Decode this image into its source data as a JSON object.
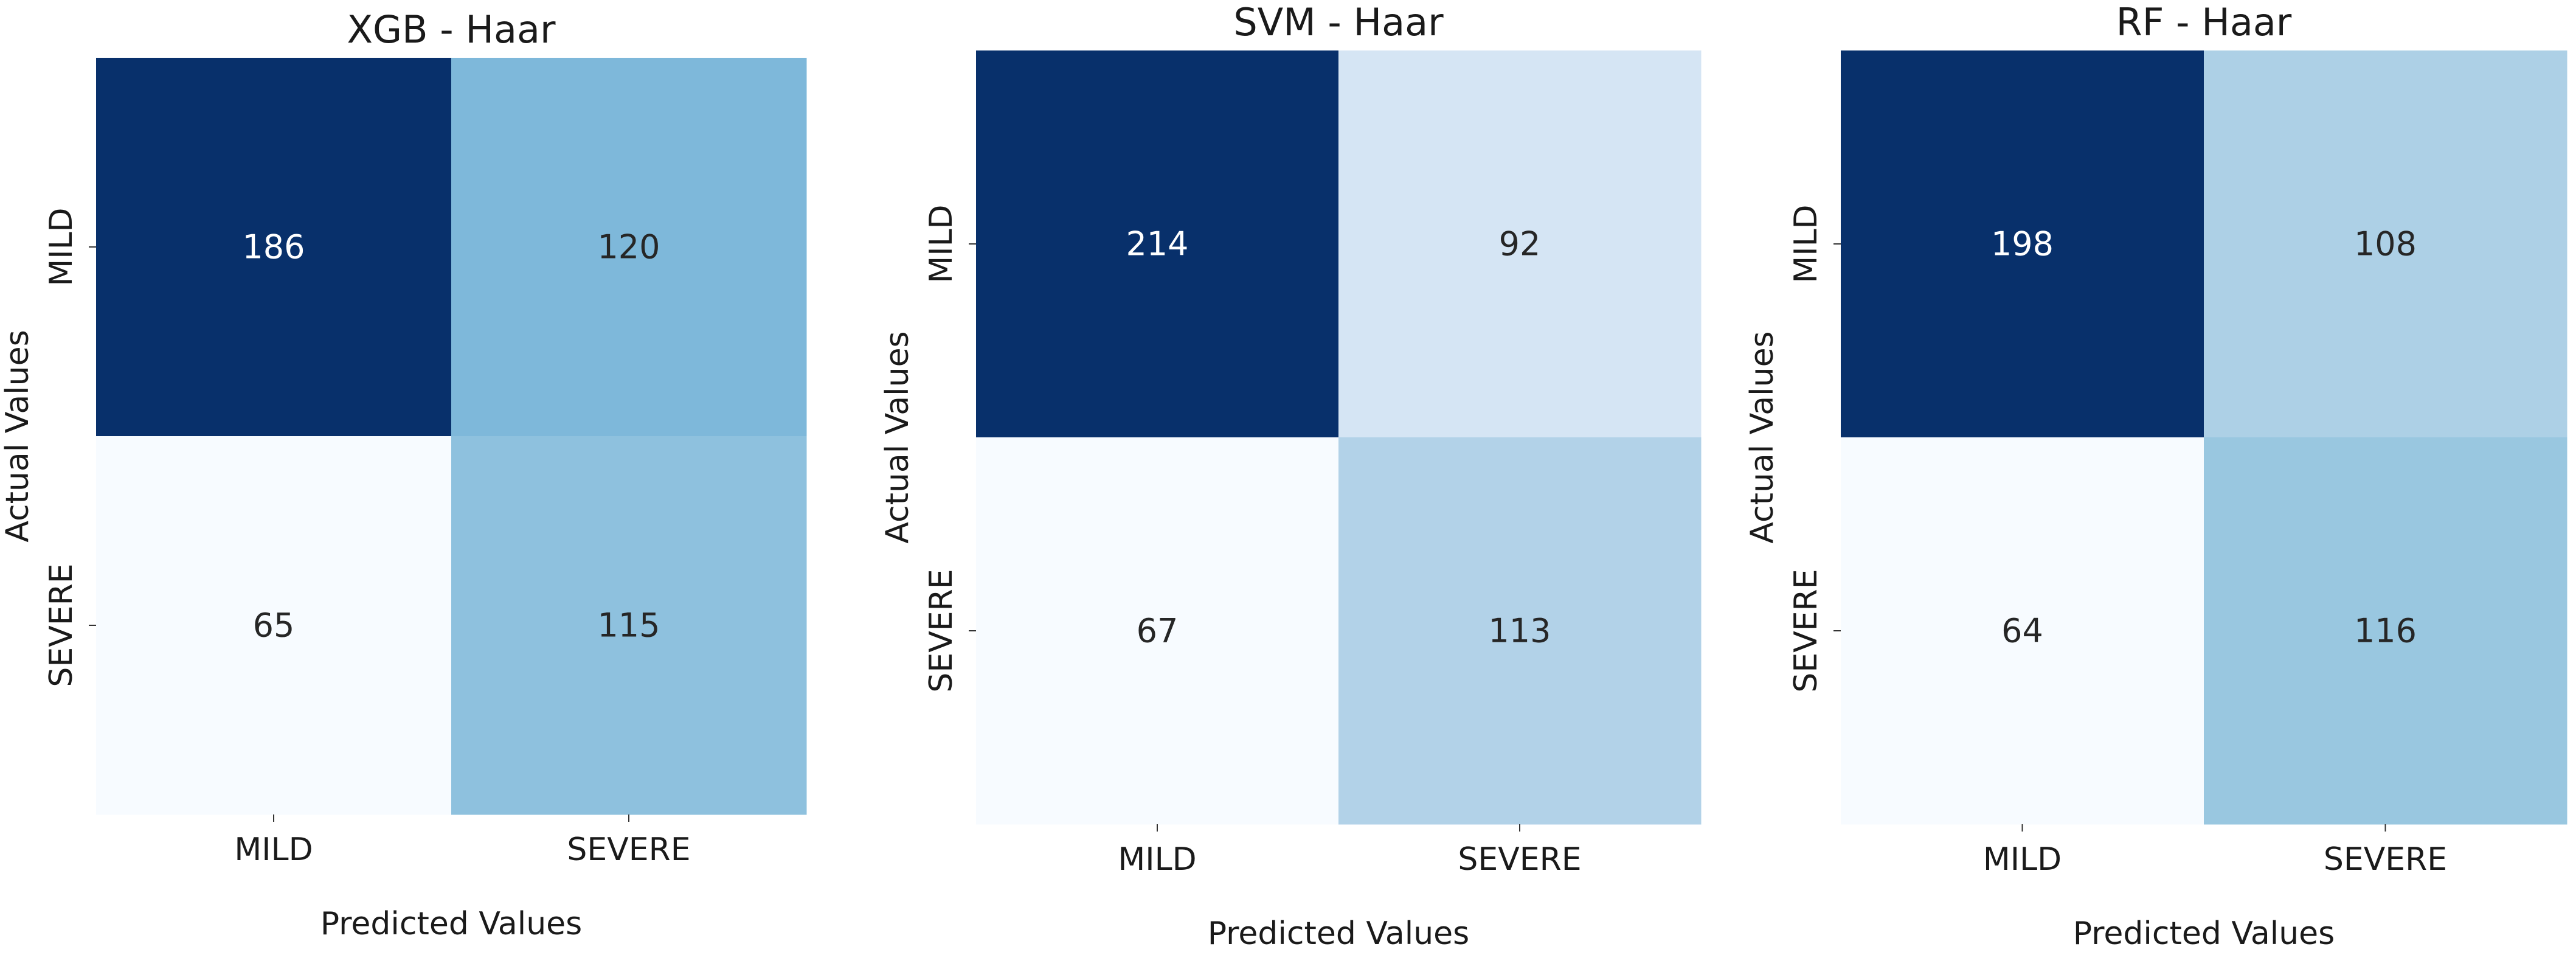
{
  "chart_data": [
    {
      "type": "heatmap",
      "title": "XGB - Haar",
      "xlabel": "Predicted Values",
      "ylabel": "Actual Values",
      "x_categories": [
        "MILD",
        "SEVERE"
      ],
      "y_categories": [
        "MILD",
        "SEVERE"
      ],
      "values": [
        [
          186,
          120
        ],
        [
          65,
          115
        ]
      ],
      "colormap": "Blues",
      "colorbar": false
    },
    {
      "type": "heatmap",
      "title": "SVM - Haar",
      "xlabel": "Predicted Values",
      "ylabel": "Actual Values",
      "x_categories": [
        "MILD",
        "SEVERE"
      ],
      "y_categories": [
        "MILD",
        "SEVERE"
      ],
      "values": [
        [
          214,
          92
        ],
        [
          67,
          113
        ]
      ],
      "colormap": "Blues",
      "colorbar": false
    },
    {
      "type": "heatmap",
      "title": "RF - Haar",
      "xlabel": "Predicted Values",
      "ylabel": "Actual Values",
      "x_categories": [
        "MILD",
        "SEVERE"
      ],
      "y_categories": [
        "MILD",
        "SEVERE"
      ],
      "values": [
        [
          198,
          108
        ],
        [
          64,
          116
        ]
      ],
      "colormap": "Blues",
      "colorbar": false
    }
  ]
}
